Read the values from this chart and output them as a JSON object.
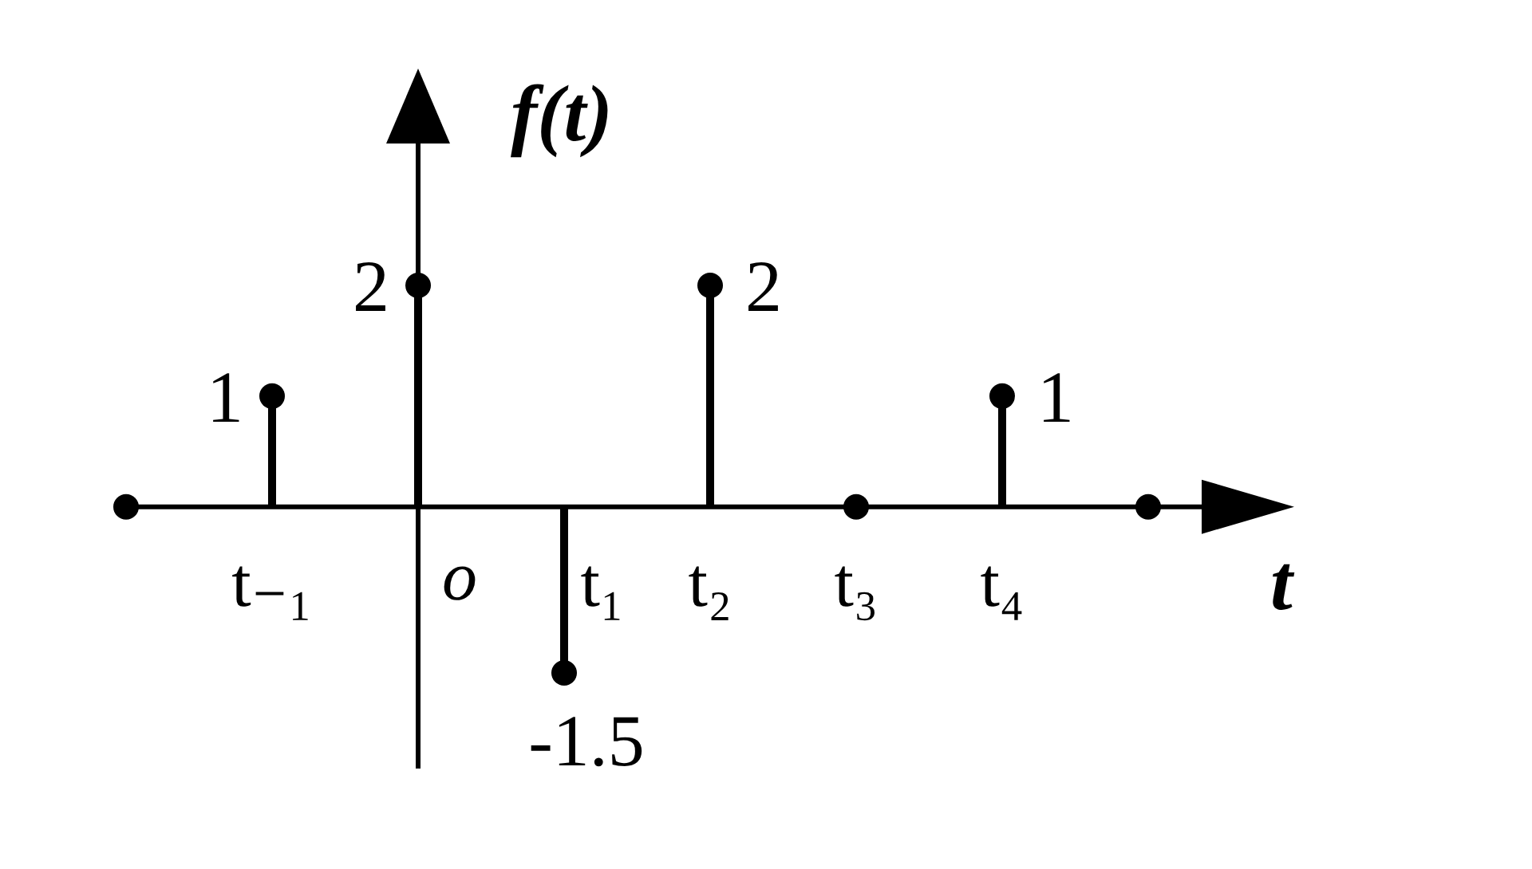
{
  "chart_data": {
    "type": "lollipop",
    "xlabel": "t",
    "ylabel": "f(t)",
    "categories": [
      null,
      "t₋₁",
      "o",
      "t₁",
      "t₂",
      "t₃",
      "t₄",
      null
    ],
    "values": [
      0,
      1,
      2,
      -1.5,
      2,
      0,
      1,
      0
    ],
    "value_labels": [
      null,
      "1",
      "2",
      "-1.5",
      "2",
      null,
      "1",
      null
    ],
    "color": "#000000",
    "marker": "circle",
    "ref_lines": [
      {
        "axis": "x",
        "value": "o",
        "color": "#000000"
      }
    ]
  }
}
